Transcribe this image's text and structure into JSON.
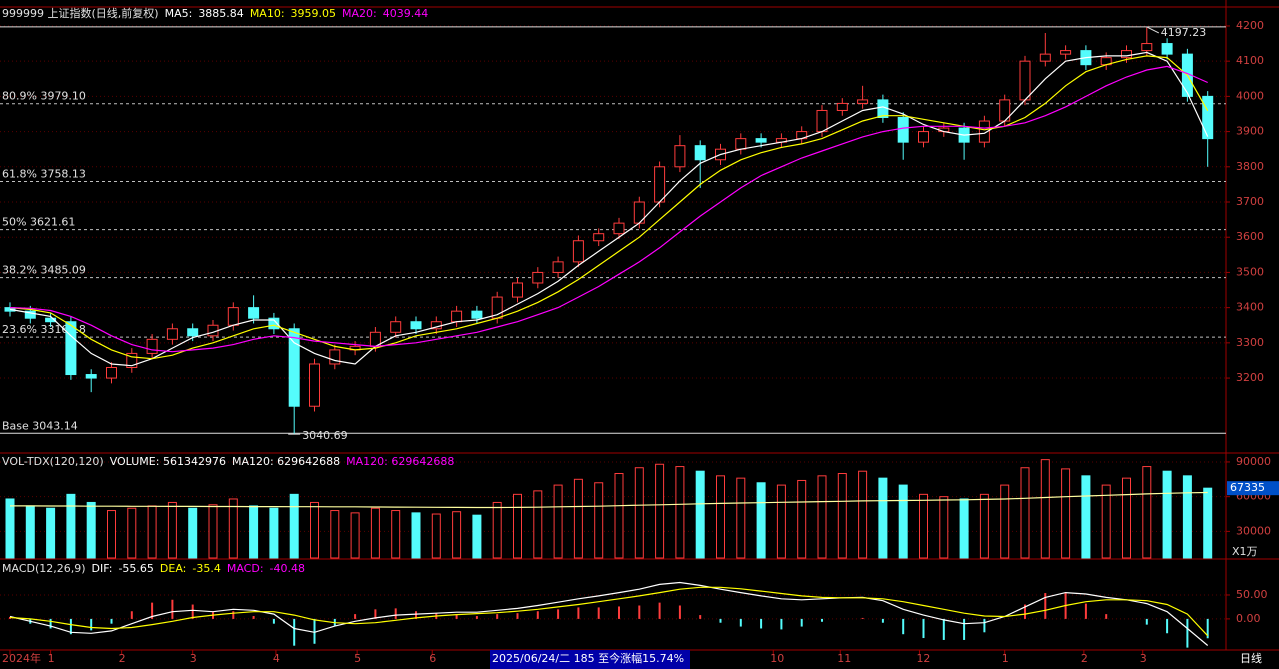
{
  "chart_data": [
    {
      "type": "candlestick",
      "title": "999999 上证指数(日线,前复权)",
      "up_color": "#ff3c3c",
      "down_color": "#54fcfc",
      "open": [
        3400,
        3390,
        3370,
        3360,
        3210,
        3200,
        3230,
        3270,
        3310,
        3340,
        3320,
        3350,
        3400,
        3370,
        3340,
        3120,
        3240,
        3280,
        3290,
        3330,
        3360,
        3340,
        3360,
        3390,
        3370,
        3430,
        3470,
        3500,
        3530,
        3590,
        3610,
        3640,
        3700,
        3800,
        3860,
        3820,
        3850,
        3880,
        3870,
        3880,
        3900,
        3960,
        3980,
        3990,
        3940,
        3870,
        3900,
        3910,
        3870,
        3930,
        3990,
        4100,
        4120,
        4130,
        4090,
        4110,
        4130,
        4150,
        4120,
        4000
      ],
      "high": [
        3415,
        3405,
        3385,
        3375,
        3225,
        3245,
        3285,
        3325,
        3355,
        3355,
        3365,
        3415,
        3435,
        3385,
        3355,
        3255,
        3295,
        3305,
        3345,
        3375,
        3375,
        3375,
        3405,
        3405,
        3445,
        3485,
        3515,
        3545,
        3605,
        3625,
        3655,
        3715,
        3815,
        3890,
        3875,
        3865,
        3895,
        3895,
        3895,
        3915,
        3975,
        3995,
        4030,
        4005,
        3955,
        3915,
        3925,
        3925,
        3945,
        4005,
        4115,
        4180,
        4145,
        4145,
        4125,
        4145,
        4197.23,
        4165,
        4135,
        4015
      ],
      "low": [
        3375,
        3355,
        3345,
        3195,
        3160,
        3185,
        3215,
        3255,
        3295,
        3305,
        3305,
        3335,
        3355,
        3325,
        3040.69,
        3105,
        3225,
        3265,
        3275,
        3315,
        3325,
        3325,
        3345,
        3355,
        3355,
        3415,
        3455,
        3485,
        3515,
        3575,
        3595,
        3625,
        3685,
        3785,
        3740,
        3805,
        3835,
        3855,
        3855,
        3865,
        3885,
        3945,
        3965,
        3925,
        3820,
        3855,
        3885,
        3820,
        3855,
        3915,
        3975,
        4085,
        4105,
        4075,
        4075,
        4095,
        4115,
        4105,
        3985,
        3800
      ],
      "close": [
        3390,
        3370,
        3360,
        3210,
        3200,
        3230,
        3270,
        3310,
        3340,
        3320,
        3350,
        3400,
        3370,
        3340,
        3120,
        3240,
        3280,
        3290,
        3330,
        3360,
        3340,
        3360,
        3390,
        3370,
        3430,
        3470,
        3500,
        3530,
        3590,
        3610,
        3640,
        3700,
        3800,
        3860,
        3820,
        3850,
        3880,
        3870,
        3880,
        3900,
        3960,
        3980,
        3990,
        3940,
        3870,
        3900,
        3910,
        3870,
        3930,
        3990,
        4100,
        4120,
        4130,
        4090,
        4110,
        4130,
        4150,
        4120,
        4000,
        3880
      ],
      "series": [
        {
          "name": "MA5:",
          "color": "#ffffff",
          "values": [
            3395,
            3385,
            3375,
            3320,
            3270,
            3240,
            3235,
            3255,
            3285,
            3315,
            3330,
            3350,
            3365,
            3365,
            3300,
            3270,
            3250,
            3240,
            3290,
            3320,
            3330,
            3345,
            3360,
            3365,
            3380,
            3410,
            3440,
            3475,
            3520,
            3560,
            3600,
            3640,
            3700,
            3760,
            3810,
            3835,
            3850,
            3860,
            3870,
            3880,
            3900,
            3930,
            3960,
            3970,
            3950,
            3920,
            3900,
            3890,
            3895,
            3930,
            3990,
            4050,
            4100,
            4110,
            4115,
            4115,
            4125,
            4100,
            4010,
            3885.84
          ]
        },
        {
          "name": "MA10:",
          "color": "#ffff00",
          "values": [
            3400,
            3395,
            3385,
            3350,
            3310,
            3280,
            3260,
            3255,
            3265,
            3285,
            3300,
            3320,
            3340,
            3350,
            3330,
            3310,
            3290,
            3280,
            3285,
            3300,
            3320,
            3330,
            3340,
            3355,
            3370,
            3390,
            3415,
            3445,
            3480,
            3520,
            3560,
            3600,
            3650,
            3700,
            3750,
            3790,
            3820,
            3840,
            3855,
            3865,
            3880,
            3905,
            3930,
            3945,
            3945,
            3935,
            3925,
            3915,
            3905,
            3915,
            3940,
            3980,
            4030,
            4070,
            4090,
            4105,
            4115,
            4110,
            4060,
            3959.05
          ]
        },
        {
          "name": "MA20:",
          "color": "#ff00ff",
          "values": [
            3400,
            3398,
            3392,
            3375,
            3350,
            3320,
            3295,
            3280,
            3275,
            3280,
            3285,
            3295,
            3310,
            3320,
            3315,
            3305,
            3300,
            3295,
            3290,
            3295,
            3300,
            3310,
            3320,
            3330,
            3345,
            3360,
            3380,
            3400,
            3430,
            3460,
            3495,
            3530,
            3570,
            3615,
            3660,
            3700,
            3740,
            3775,
            3800,
            3825,
            3845,
            3865,
            3885,
            3900,
            3910,
            3915,
            3915,
            3915,
            3910,
            3915,
            3925,
            3945,
            3970,
            4000,
            4030,
            4055,
            4075,
            4085,
            4065,
            4039.44
          ]
        }
      ],
      "fib_levels": [
        {
          "label": "80.9% 3979.10",
          "value": 3979.1,
          "style": "dashed"
        },
        {
          "label": "61.8% 3758.13",
          "value": 3758.13,
          "style": "dashed"
        },
        {
          "label": "50% 3621.61",
          "value": 3621.61,
          "style": "dashed"
        },
        {
          "label": "38.2% 3485.09",
          "value": 3485.09,
          "style": "dashed"
        },
        {
          "label": "23.6% 3316.18",
          "value": 3316.18,
          "style": "dashed"
        },
        {
          "label": "Base 3043.14",
          "value": 3043.14,
          "style": "solid"
        }
      ],
      "ylim": [
        2990,
        4251
      ],
      "yticks": [
        3200,
        3300,
        3400,
        3500,
        3600,
        3700,
        3800,
        3900,
        4000,
        4100,
        4200
      ],
      "grid": true,
      "xticks": [
        {
          "value": 0,
          "label": "2024年"
        },
        {
          "value": 2,
          "label": "1"
        },
        {
          "value": 5.5,
          "label": "2"
        },
        {
          "value": 9,
          "label": "3"
        },
        {
          "value": 13.1,
          "label": "4"
        },
        {
          "value": 17.1,
          "label": "5"
        },
        {
          "value": 20.8,
          "label": "6"
        },
        {
          "value": 37.6,
          "label": "10"
        },
        {
          "value": 40.9,
          "label": "11"
        },
        {
          "value": 44.8,
          "label": "12"
        },
        {
          "value": 49,
          "label": "1"
        },
        {
          "value": 52.9,
          "label": "2"
        },
        {
          "value": 55.8,
          "label": "3"
        }
      ]
    },
    {
      "type": "volume",
      "title": "VOL-TDX(120,120)",
      "header": [
        {
          "text": "VOLUME: 561342976",
          "color": "#ffffff"
        },
        {
          "text": "MA120: 629642688",
          "color": "#ffffff"
        },
        {
          "text": "MA120: 629642688",
          "color": "#ff00ff"
        }
      ],
      "unit": "X1万",
      "values": [
        58000,
        52000,
        50000,
        62000,
        55000,
        48000,
        50000,
        52000,
        55000,
        50000,
        53000,
        58000,
        52000,
        50000,
        62000,
        55000,
        48000,
        46000,
        50000,
        48000,
        46000,
        45000,
        47000,
        44000,
        55000,
        62000,
        65000,
        70000,
        75000,
        72000,
        80000,
        85000,
        88000,
        86000,
        82000,
        78000,
        76000,
        72000,
        70000,
        74000,
        78000,
        80000,
        82000,
        76000,
        70000,
        62000,
        60000,
        58000,
        62000,
        70000,
        85000,
        92000,
        84000,
        78000,
        70000,
        76000,
        86000,
        82000,
        78000,
        67335
      ],
      "ma": {
        "color": "#ffffa0",
        "values": [
          52000,
          52000,
          51900,
          51900,
          51800,
          51800,
          51700,
          51700,
          51600,
          51600,
          51500,
          51500,
          51400,
          51400,
          51300,
          51300,
          51200,
          51200,
          51100,
          51000,
          50900,
          50800,
          50700,
          50600,
          50600,
          50700,
          50900,
          51200,
          51500,
          51800,
          52200,
          52600,
          53000,
          53400,
          53800,
          54200,
          54500,
          54800,
          55100,
          55400,
          55700,
          56000,
          56300,
          56500,
          56700,
          56900,
          57100,
          57300,
          57600,
          58000,
          58600,
          59300,
          60000,
          60600,
          61200,
          61800,
          62400,
          62900,
          63300,
          63600
        ]
      },
      "ylim": [
        7000,
        96000
      ],
      "yticks": [
        30000,
        60000,
        90000
      ],
      "grid": true
    },
    {
      "type": "macd",
      "title": "MACD(12,26,9)",
      "up_color": "#ff3c3c",
      "down_color": "#54fcfc",
      "series": [
        {
          "name": "DIF:",
          "color": "#ffffff",
          "values": [
            5,
            -5,
            -15,
            -28,
            -30,
            -25,
            -10,
            5,
            15,
            18,
            15,
            20,
            18,
            10,
            -20,
            -28,
            -15,
            -5,
            2,
            8,
            10,
            12,
            14,
            14,
            18,
            22,
            28,
            35,
            42,
            48,
            55,
            62,
            72,
            76,
            70,
            62,
            55,
            48,
            42,
            40,
            42,
            44,
            45,
            38,
            20,
            8,
            -2,
            -10,
            -8,
            5,
            25,
            45,
            55,
            52,
            45,
            40,
            32,
            15,
            -20,
            -55.65
          ]
        },
        {
          "name": "DEA:",
          "color": "#ffff00",
          "values": [
            3,
            0,
            -5,
            -12,
            -18,
            -20,
            -18,
            -12,
            -5,
            3,
            8,
            12,
            15,
            15,
            8,
            -2,
            -8,
            -10,
            -8,
            -3,
            2,
            6,
            9,
            11,
            13,
            16,
            20,
            25,
            30,
            36,
            42,
            48,
            55,
            62,
            66,
            66,
            63,
            58,
            53,
            48,
            45,
            44,
            44,
            42,
            36,
            28,
            20,
            12,
            6,
            5,
            10,
            18,
            28,
            36,
            40,
            40,
            38,
            30,
            10,
            -35.4
          ]
        }
      ],
      "histogram": {
        "name": "MACD:",
        "color": "#ff00ff",
        "values": [
          4,
          -10,
          -20,
          -32,
          -24,
          -10,
          16,
          34,
          40,
          30,
          14,
          16,
          6,
          -10,
          -56,
          -52,
          -14,
          10,
          20,
          22,
          16,
          12,
          10,
          6,
          10,
          12,
          16,
          20,
          24,
          24,
          26,
          28,
          34,
          28,
          8,
          -8,
          -16,
          -20,
          -22,
          -16,
          -6,
          0,
          2,
          -8,
          -32,
          -40,
          -44,
          -44,
          -28,
          0,
          30,
          54,
          54,
          32,
          10,
          0,
          -12,
          -30,
          -60,
          -40.48
        ]
      },
      "ylim": [
        -65,
        121
      ],
      "yticks": [
        {
          "value": 0,
          "label": "0.00"
        },
        {
          "value": 50,
          "label": "50.00"
        }
      ],
      "grid": true
    }
  ],
  "status_bar": {
    "highlight": "2025/06/24/二 185 至今涨幅15.74%",
    "period": "日线"
  }
}
